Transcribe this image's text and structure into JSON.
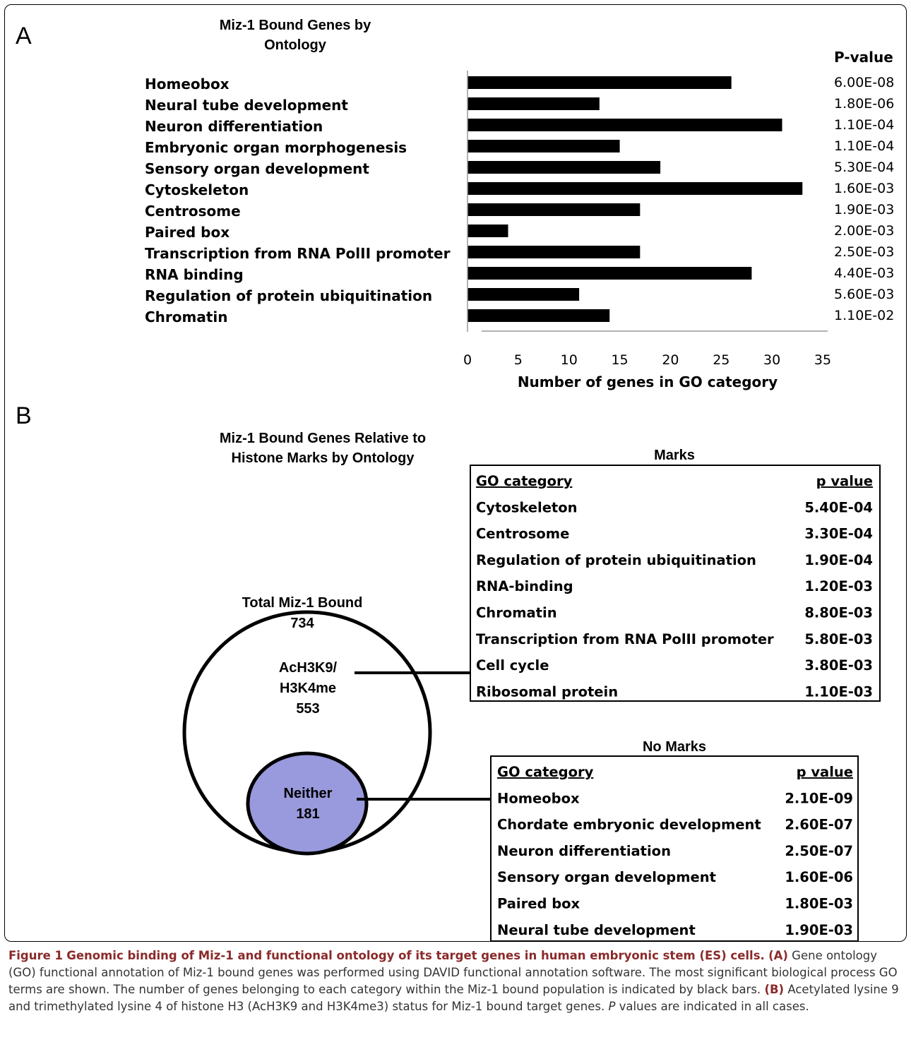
{
  "panel_a": {
    "letter": "A",
    "title_lines": [
      "Miz-1 Bound Genes by",
      "Ontology"
    ],
    "pvalue_header": "P-value"
  },
  "chart_data": {
    "type": "bar",
    "orientation": "horizontal",
    "categories": [
      "Homeobox",
      "Neural tube development",
      "Neuron differentiation",
      "Embryonic organ morphogenesis",
      "Sensory organ development",
      "Cytoskeleton",
      "Centrosome",
      "Paired box",
      "Transcription from RNA PolII promoter",
      "RNA binding",
      "Regulation of protein ubiquitination",
      "Chromatin"
    ],
    "values": [
      26,
      13,
      31,
      15,
      19,
      33,
      17,
      4,
      17,
      28,
      11,
      14
    ],
    "pvalues": [
      "6.00E-08",
      "1.80E-06",
      "1.10E-04",
      "1.10E-04",
      "5.30E-04",
      "1.60E-03",
      "1.90E-03",
      "2.00E-03",
      "2.50E-03",
      "4.40E-03",
      "5.60E-03",
      "1.10E-02"
    ],
    "xlabel": "Number of genes in GO category",
    "xlim": [
      0,
      35
    ],
    "xticks": [
      "0",
      "5",
      "10",
      "15",
      "20",
      "25",
      "30",
      "35"
    ],
    "bar_color": "#000000",
    "grid": false
  },
  "panel_b": {
    "letter": "B",
    "title_lines": [
      "Miz-1 Bound Genes Relative to",
      "Histone Marks by Ontology"
    ],
    "venn": {
      "outer_lines": [
        "Total Miz-1 Bound",
        "734"
      ],
      "middle_lines": [
        "AcH3K9/",
        "H3K4me",
        "553"
      ],
      "inner_lines": [
        "Neither",
        "181"
      ],
      "inner_color": "#9999dd"
    },
    "marks_table": {
      "title": "Marks",
      "header": [
        "GO category",
        " p value"
      ],
      "rows": [
        [
          "Cytoskeleton",
          "5.40E-04"
        ],
        [
          "Centrosome",
          "3.30E-04"
        ],
        [
          "Regulation of protein ubiquitination",
          "1.90E-04"
        ],
        [
          "RNA-binding",
          "1.20E-03"
        ],
        [
          "Chromatin",
          "8.80E-03"
        ],
        [
          "Transcription from RNA PolII promoter",
          "5.80E-03"
        ],
        [
          "Cell cycle",
          "3.80E-03"
        ],
        [
          "Ribosomal protein",
          "1.10E-03"
        ]
      ]
    },
    "nomarks_table": {
      "title": "No Marks",
      "header": [
        "GO category",
        " p value"
      ],
      "rows": [
        [
          "Homeobox",
          "2.10E-09"
        ],
        [
          "Chordate embryonic development",
          "2.60E-07"
        ],
        [
          "Neuron differentiation",
          "2.50E-07"
        ],
        [
          "Sensory organ development",
          "1.60E-06"
        ],
        [
          "Paired box",
          "1.80E-03"
        ],
        [
          "Neural tube development",
          "1.90E-03"
        ]
      ]
    }
  },
  "caption": {
    "figure_label": "Figure 1",
    "title": "Genomic binding of Miz-1 and functional ontology of its target genes in human embryonic stem (ES) cells.",
    "label_a": "(A)",
    "text_a": "Gene ontology (GO) functional annotation of Miz-1 bound genes was performed using DAVID functional annotation software. The most significant biological process GO terms are shown. The number of genes belonging to each category within the Miz-1 bound population is indicated by black bars.",
    "label_b": "(B)",
    "text_b_1": "Acetylated lysine 9 and trimethylated lysine 4 of histone H3 (AcH3K9 and H3K4me3) status for Miz-1 bound target genes.",
    "text_b_p": "P",
    "text_b_2": "values are indicated in all cases."
  }
}
